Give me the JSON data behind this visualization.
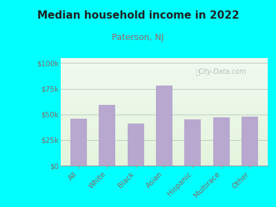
{
  "title": "Median household income in 2022",
  "subtitle": "Paterson, NJ",
  "categories": [
    "All",
    "White",
    "Black",
    "Asian",
    "Hispanic",
    "Multirace",
    "Other"
  ],
  "values": [
    46000,
    59000,
    41000,
    78000,
    45000,
    47000,
    47500
  ],
  "bar_color": "#b8a8d0",
  "background_outer": "#00ffff",
  "title_color": "#222222",
  "subtitle_color": "#996666",
  "tick_color": "#886666",
  "yticks": [
    0,
    25000,
    50000,
    75000,
    100000
  ],
  "ytick_labels": [
    "$0",
    "$25k",
    "$50k",
    "$75k",
    "$100k"
  ],
  "ylim": [
    0,
    105000
  ],
  "watermark": "City-Data.com"
}
